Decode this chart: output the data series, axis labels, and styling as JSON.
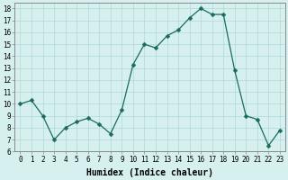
{
  "x": [
    0,
    1,
    2,
    3,
    4,
    5,
    6,
    7,
    8,
    9,
    10,
    11,
    12,
    13,
    14,
    15,
    16,
    17,
    18,
    19,
    20,
    21,
    22,
    23
  ],
  "y": [
    10.0,
    10.3,
    9.0,
    7.0,
    8.0,
    8.5,
    8.8,
    8.3,
    7.5,
    9.5,
    13.3,
    15.0,
    14.7,
    15.7,
    16.2,
    17.2,
    18.0,
    17.5,
    17.5,
    12.8,
    9.0,
    8.7,
    6.5,
    7.8
  ],
  "line_color": "#1a6b5a",
  "marker_color": "#1a6b5a",
  "bg_color": "#d6f0ef",
  "grid_color": "#b0d8d5",
  "xlabel": "Humidex (Indice chaleur)",
  "xlim": [
    -0.5,
    23.5
  ],
  "ylim": [
    6,
    18.5
  ],
  "yticks": [
    6,
    7,
    8,
    9,
    10,
    11,
    12,
    13,
    14,
    15,
    16,
    17,
    18
  ],
  "xticks": [
    0,
    1,
    2,
    3,
    4,
    5,
    6,
    7,
    8,
    9,
    10,
    11,
    12,
    13,
    14,
    15,
    16,
    17,
    18,
    19,
    20,
    21,
    22,
    23
  ],
  "tick_label_fontsize": 5.5,
  "xlabel_fontsize": 7.0,
  "marker_size": 2.5,
  "linewidth": 0.9
}
